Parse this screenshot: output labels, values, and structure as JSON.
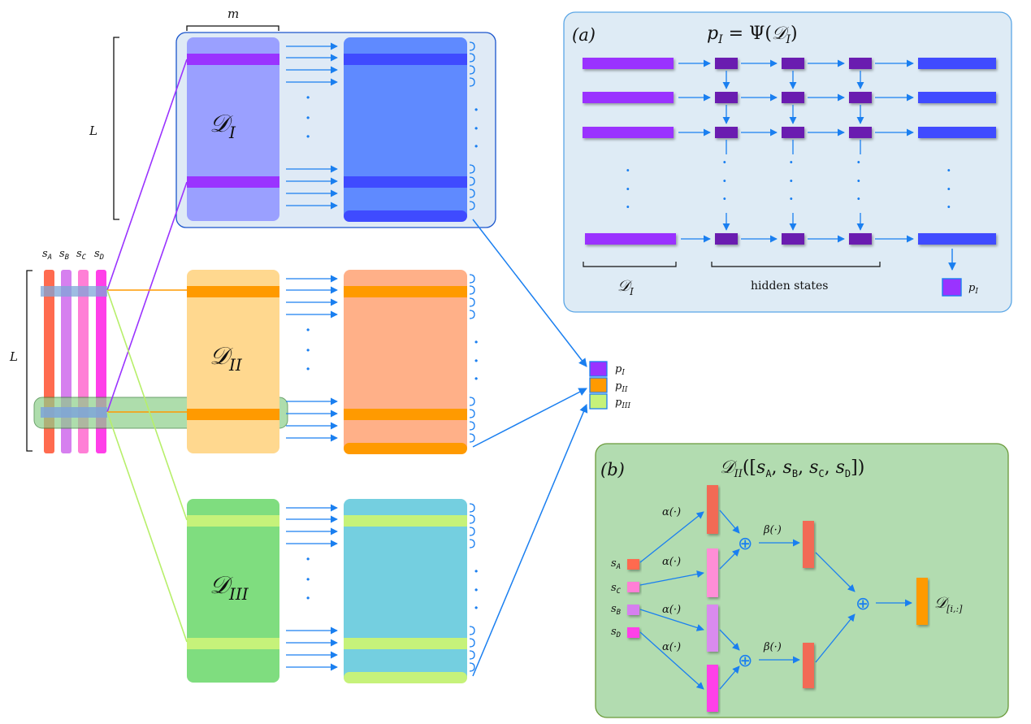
{
  "left": {
    "bracket_label": "L",
    "seq_labels": [
      {
        "base": "s",
        "sub": "A"
      },
      {
        "base": "s",
        "sub": "B"
      },
      {
        "base": "s",
        "sub": "C"
      },
      {
        "base": "s",
        "sub": "D"
      }
    ],
    "colors": [
      "#ff6b4f",
      "#d67fef",
      "#ff7fd6",
      "#ff3fe8"
    ]
  },
  "blocks": [
    {
      "id": "I",
      "base": "𝒟",
      "sub": "I",
      "fill_left": "#9aa0ff",
      "fill_right": "#5f8aff",
      "stripe": "#9a33ff",
      "stripe_right": "#3f4bff",
      "link": "#9a33ff"
    },
    {
      "id": "II",
      "base": "𝒟",
      "sub": "II",
      "fill_left": "#ffd88f",
      "fill_right": "#ffb088",
      "stripe": "#ff9a00",
      "stripe_right": "#ff9a00",
      "link": "#ff9a00"
    },
    {
      "id": "III",
      "base": "𝒟",
      "sub": "III",
      "fill_left": "#7fdd7f",
      "fill_right": "#74cfe0",
      "stripe": "#c6f27a",
      "stripe_right": "#c6f27a",
      "link": "#b7ef6a"
    }
  ],
  "top_labels": {
    "width_label": "m",
    "height_label": "L"
  },
  "outputs": [
    {
      "label_base": "p",
      "label_sub": "I",
      "color": "#9a33ff"
    },
    {
      "label_base": "p",
      "label_sub": "II",
      "color": "#ff9a00"
    },
    {
      "label_base": "p",
      "label_sub": "III",
      "color": "#c6f27a"
    }
  ],
  "panel_a": {
    "tag": "(a)",
    "formula": "p_I = Ψ(𝒟_I)",
    "formula_left": "p",
    "formula_left_sub": "I",
    "formula_mid": " = Ψ(",
    "formula_d": "𝒟",
    "formula_d_sub": "I",
    "formula_end": ")",
    "input_label_base": "𝒟",
    "input_label_sub": "I",
    "hidden_label": "hidden states",
    "output_label_base": "p",
    "output_label_sub": "I",
    "bg": "#deebf5",
    "border": "#5aa6e6"
  },
  "panel_b": {
    "tag": "(b)",
    "title_d": "𝒟",
    "title_sub": "II",
    "title_rest_open": "([",
    "title_rest_close": "])",
    "title_items": [
      {
        "base": "s",
        "sub": "A"
      },
      {
        "base": "s",
        "sub": "B"
      },
      {
        "base": "s",
        "sub": "C"
      },
      {
        "base": "s",
        "sub": "D"
      }
    ],
    "inputs": [
      {
        "base": "s",
        "sub": "A",
        "color": "#ff6b4f"
      },
      {
        "base": "s",
        "sub": "C",
        "color": "#ff7fd6"
      },
      {
        "base": "s",
        "sub": "B",
        "color": "#d67fef"
      },
      {
        "base": "s",
        "sub": "D",
        "color": "#ff3fe8"
      }
    ],
    "alpha_label": "α(·)",
    "beta_label": "β(·)",
    "plus": "⊕",
    "output_base": "𝒟",
    "output_sub": "[i,:]",
    "bg": "#b2dcb0",
    "border": "#6a9a3a"
  },
  "dots": "·"
}
